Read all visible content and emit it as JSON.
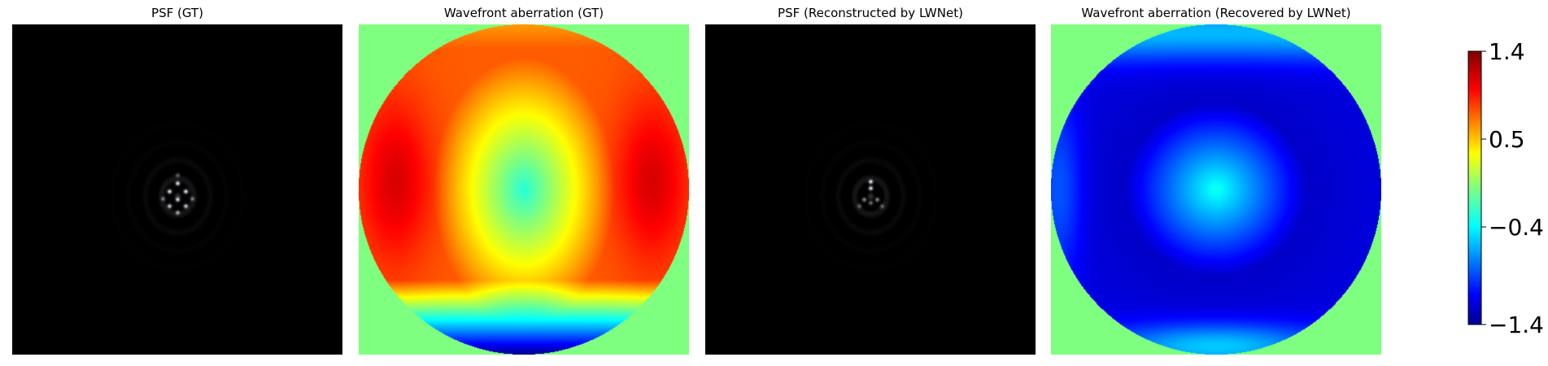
{
  "panels": [
    {
      "title": "PSF (GT)",
      "kind": "psf",
      "shape": "diamond"
    },
    {
      "title": "Wavefront aberration (GT)",
      "kind": "wavefront",
      "variant": "gt"
    },
    {
      "title": "PSF (Reconstructed by LWNet)",
      "kind": "psf",
      "shape": "triangle"
    },
    {
      "title": "Wavefront aberration (Recovered by LWNet)",
      "kind": "wavefront",
      "variant": "recovered"
    }
  ],
  "chart_data": {
    "type": "heatmap",
    "colormap": "jet",
    "background_color": "#000000",
    "outside_pupil_color": "#7fff7f",
    "colorbar": {
      "range": [
        -1.4,
        1.4
      ],
      "ticks": [
        1.4,
        0.5,
        -0.4,
        -1.4
      ],
      "tick_labels": [
        "1.4",
        "0.5",
        "−0.4",
        "−1.4"
      ]
    }
  }
}
